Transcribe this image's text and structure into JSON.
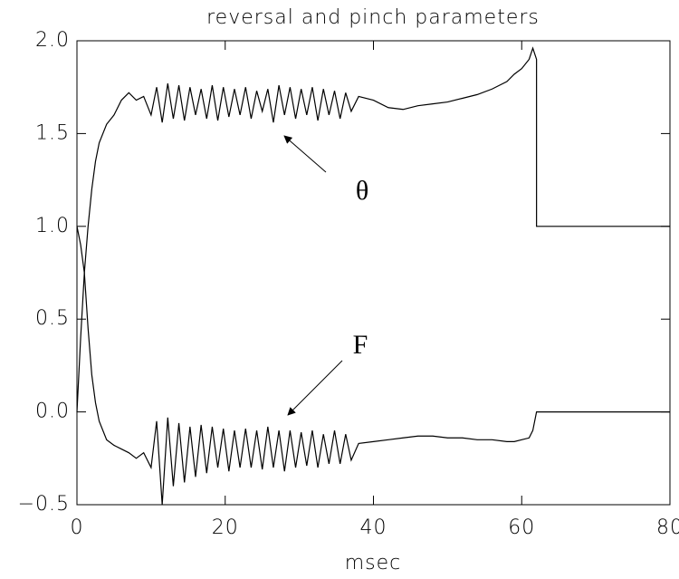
{
  "chart_data": {
    "type": "line",
    "title": "reversal and pinch parameters",
    "x_label": "msec",
    "x": [
      0,
      0.5,
      1,
      1.5,
      2,
      2.5,
      3,
      4,
      5,
      6,
      7,
      8,
      9,
      10,
      10.75,
      11.5,
      12.25,
      13,
      13.75,
      14.5,
      15.25,
      16,
      16.75,
      17.5,
      18.25,
      19,
      19.75,
      20.5,
      21.25,
      22,
      22.75,
      23.5,
      24.25,
      25,
      25.75,
      26.5,
      27.25,
      28,
      28.75,
      29.5,
      30.25,
      31,
      31.75,
      32.5,
      33.25,
      34,
      34.75,
      35.5,
      36.25,
      37,
      38,
      40,
      42,
      44,
      46,
      48,
      50,
      52,
      54,
      56,
      58,
      59,
      60,
      61,
      61.5,
      62,
      62,
      80
    ],
    "series": [
      {
        "name": "θ",
        "color": "#000000",
        "values": [
          0,
          0.4,
          0.75,
          1.0,
          1.2,
          1.35,
          1.45,
          1.55,
          1.6,
          1.68,
          1.72,
          1.68,
          1.7,
          1.6,
          1.75,
          1.56,
          1.77,
          1.58,
          1.76,
          1.57,
          1.75,
          1.6,
          1.74,
          1.58,
          1.76,
          1.57,
          1.75,
          1.59,
          1.74,
          1.6,
          1.75,
          1.58,
          1.73,
          1.62,
          1.74,
          1.56,
          1.76,
          1.6,
          1.75,
          1.58,
          1.74,
          1.6,
          1.75,
          1.57,
          1.74,
          1.6,
          1.73,
          1.58,
          1.72,
          1.62,
          1.7,
          1.68,
          1.64,
          1.63,
          1.65,
          1.66,
          1.67,
          1.69,
          1.71,
          1.74,
          1.78,
          1.82,
          1.85,
          1.9,
          1.96,
          1.9,
          1.0,
          1.0
        ]
      },
      {
        "name": "F",
        "color": "#000000",
        "values": [
          1.0,
          0.9,
          0.75,
          0.45,
          0.2,
          0.05,
          -0.05,
          -0.15,
          -0.18,
          -0.2,
          -0.22,
          -0.25,
          -0.22,
          -0.3,
          -0.05,
          -0.5,
          -0.03,
          -0.4,
          -0.06,
          -0.38,
          -0.08,
          -0.35,
          -0.07,
          -0.33,
          -0.08,
          -0.3,
          -0.09,
          -0.32,
          -0.1,
          -0.3,
          -0.09,
          -0.3,
          -0.1,
          -0.31,
          -0.08,
          -0.3,
          -0.1,
          -0.32,
          -0.1,
          -0.3,
          -0.11,
          -0.29,
          -0.1,
          -0.3,
          -0.12,
          -0.28,
          -0.1,
          -0.28,
          -0.12,
          -0.26,
          -0.17,
          -0.16,
          -0.15,
          -0.14,
          -0.13,
          -0.13,
          -0.14,
          -0.14,
          -0.15,
          -0.15,
          -0.16,
          -0.16,
          -0.15,
          -0.14,
          -0.1,
          0.0,
          0.0,
          0.0
        ]
      }
    ],
    "xlim": [
      0,
      80
    ],
    "xticks": [
      0,
      20,
      40,
      60,
      80
    ],
    "ylim": [
      -0.5,
      2.0
    ],
    "yticks": [
      {
        "value": -0.5,
        "label": "−0.5"
      },
      {
        "value": 0,
        "label": "0.0"
      },
      {
        "value": 0.5,
        "label": "0.5"
      },
      {
        "value": 1.0,
        "label": "1.0"
      },
      {
        "value": 1.5,
        "label": "1.5"
      },
      {
        "value": 2.0,
        "label": "2.0"
      }
    ]
  }
}
